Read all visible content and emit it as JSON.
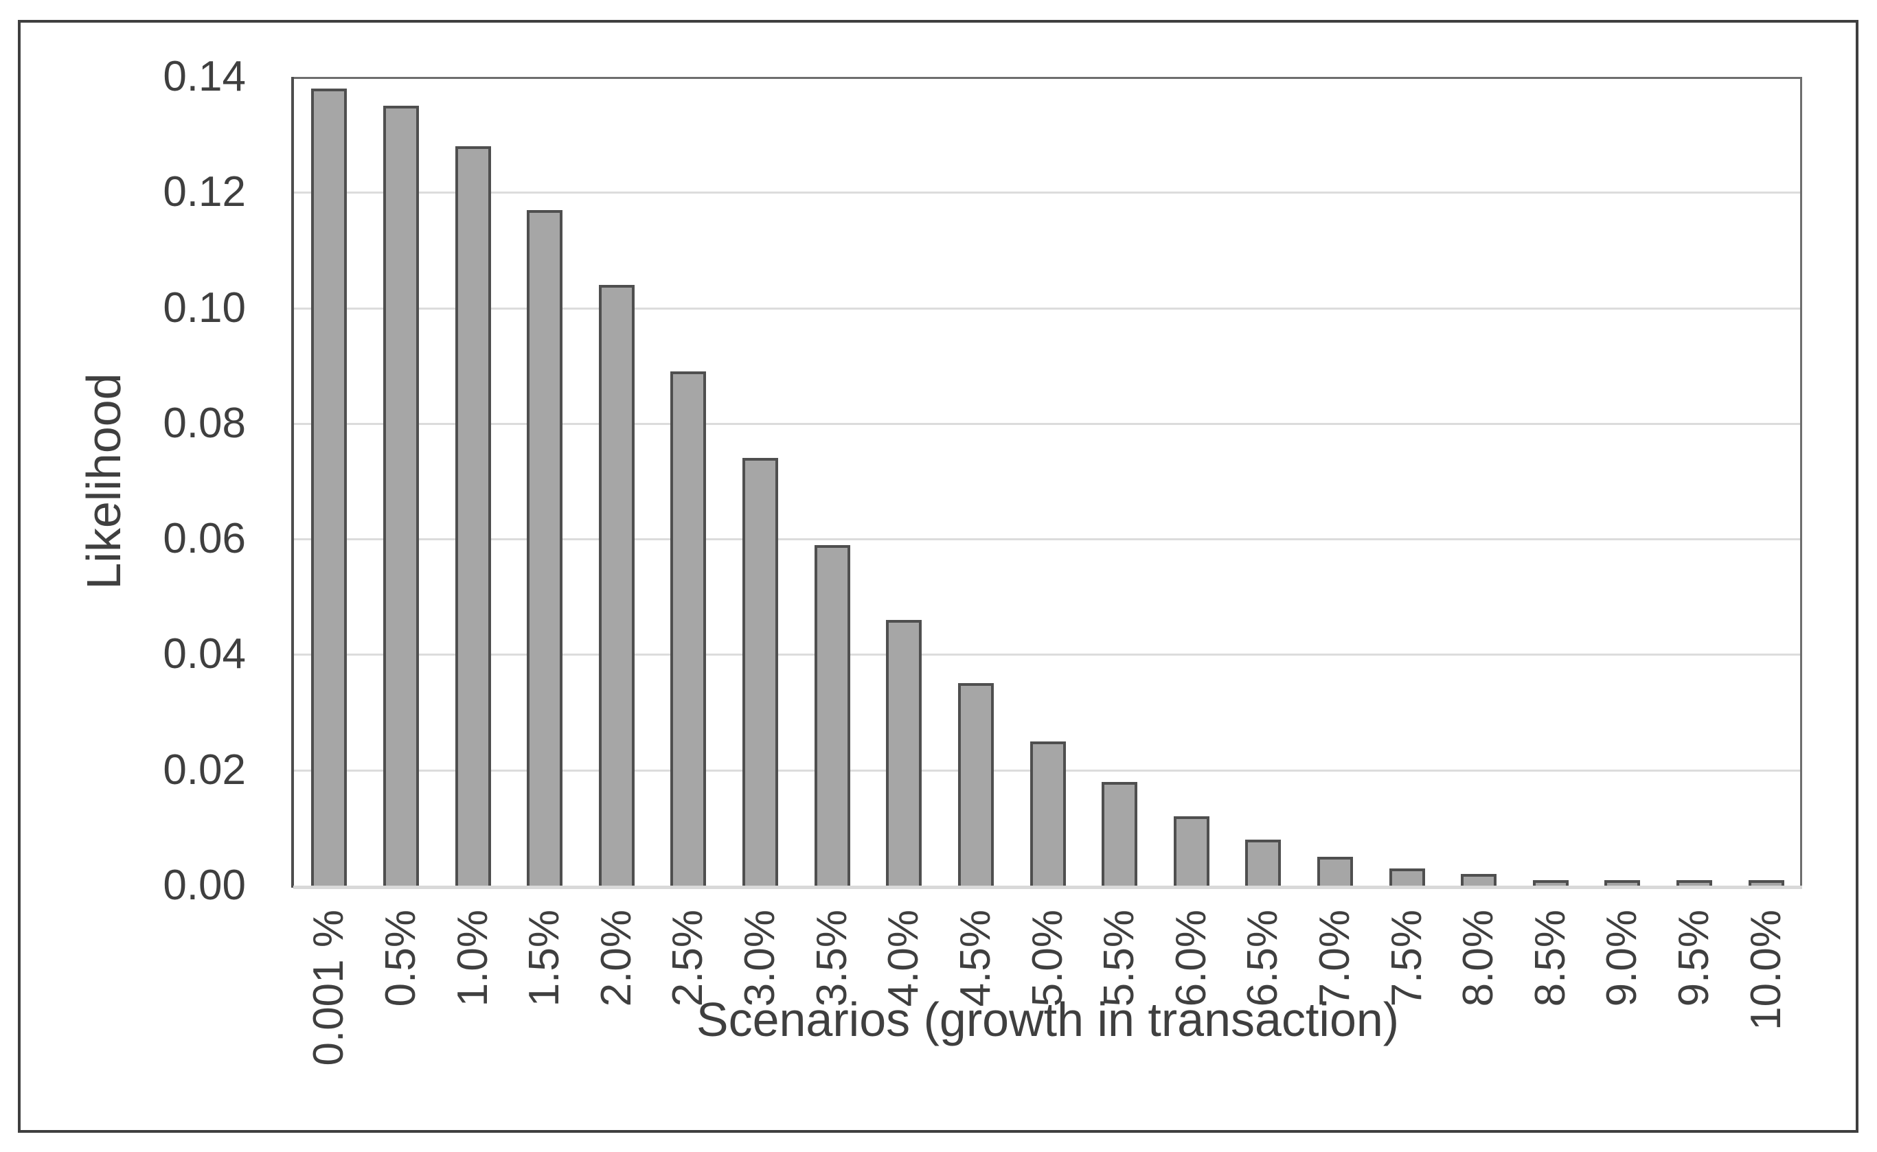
{
  "chart_data": {
    "type": "bar",
    "title": "",
    "xlabel": "Scenarios (growth in transaction)",
    "ylabel": "Likelihood",
    "categories": [
      "0.001 %",
      "0.5%",
      "1.0%",
      "1.5%",
      "2.0%",
      "2.5%",
      "3.0%",
      "3.5%",
      "4.0%",
      "4.5%",
      "5.0%",
      "5.5%",
      "6.0%",
      "6.5%",
      "7.0%",
      "7.5%",
      "8.0%",
      "8.5%",
      "9.0%",
      "9.5%",
      "10.0%"
    ],
    "values": [
      0.138,
      0.135,
      0.128,
      0.117,
      0.104,
      0.089,
      0.074,
      0.059,
      0.046,
      0.035,
      0.025,
      0.018,
      0.012,
      0.008,
      0.005,
      0.003,
      0.002,
      0.001,
      0.0007,
      0.0006,
      0.0005
    ],
    "ylim": [
      0,
      0.14
    ],
    "yticks": [
      0.0,
      0.02,
      0.04,
      0.06,
      0.08,
      0.1,
      0.12,
      0.14
    ],
    "ytick_labels": [
      "0.00",
      "0.02",
      "0.04",
      "0.06",
      "0.08",
      "0.10",
      "0.12",
      "0.14"
    ],
    "grid": true,
    "legend": false,
    "colors": {
      "bar_fill": "#a6a6a6",
      "bar_border": "#4f4f4f",
      "gridline": "#dcdcdc",
      "baseline": "#d9d9d9",
      "plot_border": "#6e6e6e",
      "y_axis_line": "#4d4d4d",
      "outer_border": "#3f3f3f",
      "text": "#3f3f3f"
    }
  }
}
